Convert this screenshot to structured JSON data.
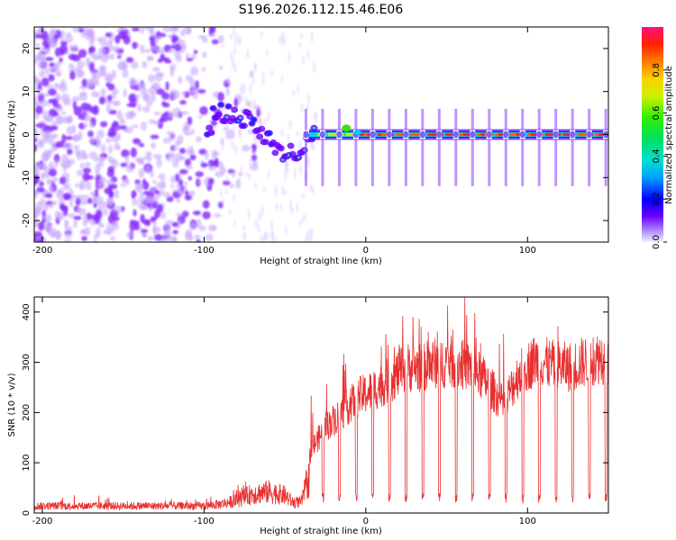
{
  "chart_data": [
    {
      "type": "heatmap",
      "title": "S196.2026.112.15.46.E06",
      "xlabel": "Height of straight line (km)",
      "ylabel": "Frequency (Hz)",
      "xlim": [
        -205,
        150
      ],
      "ylim": [
        -25,
        25
      ],
      "xticks": [
        -200,
        -100,
        0,
        100
      ],
      "yticks": [
        -20,
        -10,
        0,
        10,
        20
      ],
      "colorbar": {
        "label": "Normalized spectral amplitude",
        "range": [
          0,
          1
        ],
        "ticks": [
          0.0,
          0.2,
          0.4,
          0.6,
          0.8
        ],
        "tick_labels": [
          "0.0",
          "0.2",
          "0.4",
          "0.6",
          "0.8"
        ]
      },
      "features": {
        "noise_region_x": [
          -205,
          -90
        ],
        "tracked_line": [
          {
            "x": -95,
            "y": 5
          },
          {
            "x": -85,
            "y": 5
          },
          {
            "x": -78,
            "y": 4
          },
          {
            "x": -70,
            "y": 3
          },
          {
            "x": -65,
            "y": 0
          },
          {
            "x": -60,
            "y": -1
          },
          {
            "x": -55,
            "y": -3
          },
          {
            "x": -50,
            "y": -6
          },
          {
            "x": -45,
            "y": -4
          },
          {
            "x": -40,
            "y": -4
          },
          {
            "x": -35,
            "y": -1
          },
          {
            "x": -30,
            "y": 0
          },
          {
            "x": -20,
            "y": 0
          },
          {
            "x": -12,
            "y": 1.5
          },
          {
            "x": -5,
            "y": 0.5
          },
          {
            "x": 0,
            "y": 0
          },
          {
            "x": 150,
            "y": 0
          }
        ],
        "carrier_frequency": 0,
        "dropout_spacing_km": 10.3,
        "first_dropout_x": -37
      }
    },
    {
      "type": "line",
      "xlabel": "Height of straight line (km)",
      "ylabel": "SNR (10 * v/v)",
      "xlim": [
        -205,
        150
      ],
      "ylim": [
        0,
        430
      ],
      "xticks": [
        -200,
        -100,
        0,
        100
      ],
      "yticks": [
        0,
        100,
        200,
        300,
        400
      ],
      "series": [
        {
          "name": "SNR",
          "color": "#e83030",
          "envelope": [
            {
              "x": -205,
              "y": 20
            },
            {
              "x": -100,
              "y": 20
            },
            {
              "x": -90,
              "y": 25
            },
            {
              "x": -80,
              "y": 35
            },
            {
              "x": -70,
              "y": 55
            },
            {
              "x": -60,
              "y": 60
            },
            {
              "x": -50,
              "y": 50
            },
            {
              "x": -45,
              "y": 30
            },
            {
              "x": -40,
              "y": 30
            },
            {
              "x": -33,
              "y": 130
            },
            {
              "x": -25,
              "y": 170
            },
            {
              "x": -15,
              "y": 200
            },
            {
              "x": -5,
              "y": 230
            },
            {
              "x": 5,
              "y": 245
            },
            {
              "x": 15,
              "y": 265
            },
            {
              "x": 25,
              "y": 290
            },
            {
              "x": 35,
              "y": 290
            },
            {
              "x": 45,
              "y": 300
            },
            {
              "x": 55,
              "y": 300
            },
            {
              "x": 65,
              "y": 290
            },
            {
              "x": 75,
              "y": 260
            },
            {
              "x": 85,
              "y": 215
            },
            {
              "x": 95,
              "y": 280
            },
            {
              "x": 105,
              "y": 305
            },
            {
              "x": 115,
              "y": 295
            },
            {
              "x": 125,
              "y": 290
            },
            {
              "x": 135,
              "y": 300
            },
            {
              "x": 145,
              "y": 310
            },
            {
              "x": 150,
              "y": 300
            }
          ],
          "dropout_level": 20
        }
      ]
    }
  ]
}
